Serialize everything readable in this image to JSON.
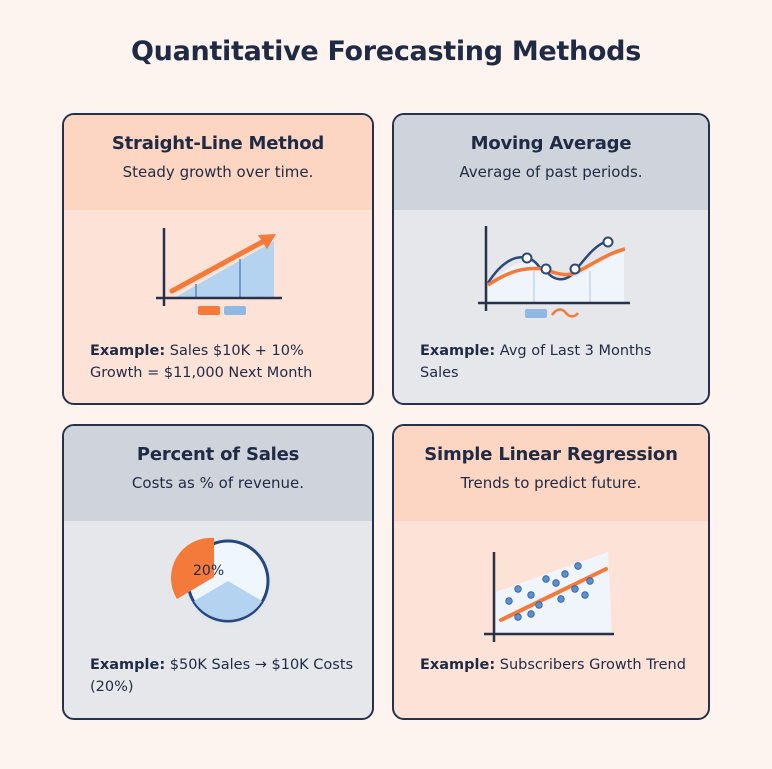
{
  "title": "Quantitative Forecasting Methods",
  "colors": {
    "accent_orange": "#f47a3c",
    "navy": "#27324a",
    "light_blue": "#b3d3f1",
    "warm_bg": "#fde3d7",
    "cool_bg": "#e5e7eb"
  },
  "cards": [
    {
      "title": "Straight-Line Method",
      "subtitle": "Steady growth over time.",
      "example_label": "Example:",
      "example_text": "Sales $10K + 10% Growth = $11,000 Next Month",
      "icon": "rising-bar-chart-with-arrow"
    },
    {
      "title": "Moving Average",
      "subtitle": "Average of past periods.",
      "example_label": "Example:",
      "example_text": "Avg of Last 3 Months Sales",
      "icon": "smoothed-line-chart"
    },
    {
      "title": "Percent of Sales",
      "subtitle": "Costs as % of revenue.",
      "example_label": "Example:",
      "example_text": "$50K Sales → $10K Costs (20%)",
      "icon": "pie-chart",
      "pie_label": "20%",
      "pie_highlight_percent": 20
    },
    {
      "title": "Simple Linear Regression",
      "subtitle": "Trends to predict future.",
      "example_label": "Example:",
      "example_text": "Subscribers Growth Trend",
      "icon": "scatter-with-trend-line"
    }
  ]
}
